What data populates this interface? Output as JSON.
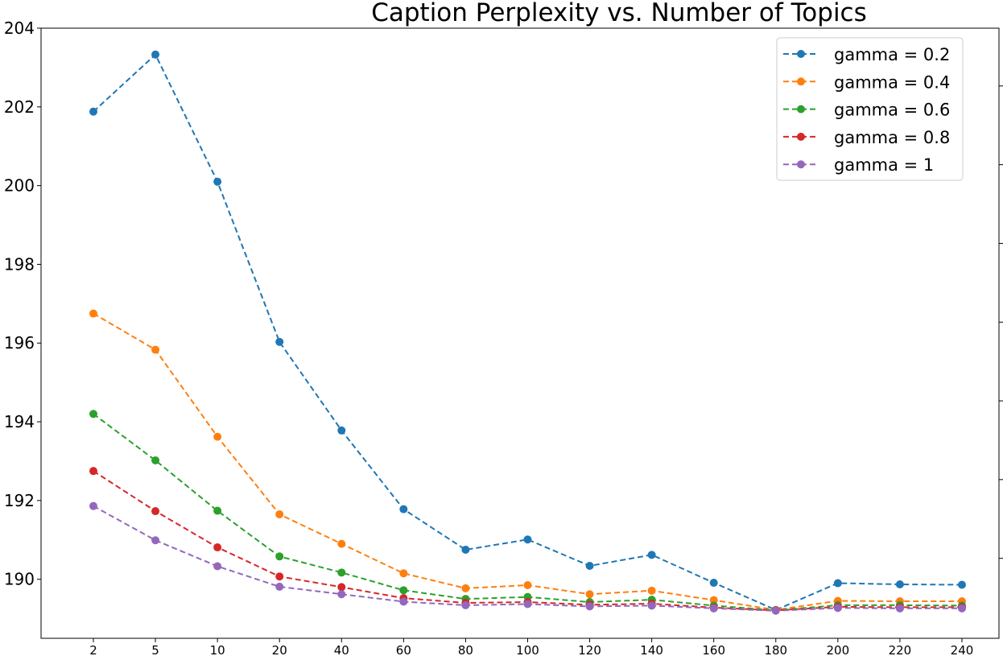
{
  "chart_data": {
    "type": "line",
    "title": "Caption Perplexity vs. Number of Topics",
    "xlabel": "",
    "ylabel": "",
    "categories": [
      "2",
      "5",
      "10",
      "20",
      "40",
      "60",
      "80",
      "100",
      "120",
      "140",
      "160",
      "180",
      "200",
      "220",
      "240"
    ],
    "ylim": [
      188.5,
      204
    ],
    "yticks": [
      190,
      192,
      194,
      196,
      198,
      200,
      202,
      204
    ],
    "grid": false,
    "legend_position": "top-right",
    "line_style": "dashed",
    "marker": "circle",
    "series": [
      {
        "name": "gamma = 0.2",
        "color": "#1f77b4",
        "values": [
          201.88,
          203.33,
          200.1,
          196.03,
          193.78,
          191.78,
          190.75,
          191.01,
          190.34,
          190.62,
          189.91,
          189.22,
          189.9,
          189.87,
          189.86
        ]
      },
      {
        "name": "gamma = 0.4",
        "color": "#ff7f0e",
        "values": [
          196.75,
          195.83,
          193.62,
          191.65,
          190.9,
          190.15,
          189.77,
          189.85,
          189.62,
          189.71,
          189.47,
          189.22,
          189.45,
          189.44,
          189.44
        ]
      },
      {
        "name": "gamma = 0.6",
        "color": "#2ca02c",
        "values": [
          194.2,
          193.02,
          191.74,
          190.58,
          190.17,
          189.72,
          189.5,
          189.55,
          189.42,
          189.48,
          189.33,
          189.21,
          189.34,
          189.34,
          189.33
        ]
      },
      {
        "name": "gamma = 0.8",
        "color": "#d62728",
        "values": [
          192.75,
          191.73,
          190.81,
          190.07,
          189.8,
          189.52,
          189.4,
          189.42,
          189.35,
          189.38,
          189.28,
          189.21,
          189.3,
          189.29,
          189.29
        ]
      },
      {
        "name": "gamma = 1",
        "color": "#9467bd",
        "values": [
          191.86,
          190.99,
          190.33,
          189.81,
          189.62,
          189.43,
          189.34,
          189.37,
          189.31,
          189.33,
          189.26,
          189.2,
          189.27,
          189.26,
          189.26
        ]
      }
    ]
  }
}
